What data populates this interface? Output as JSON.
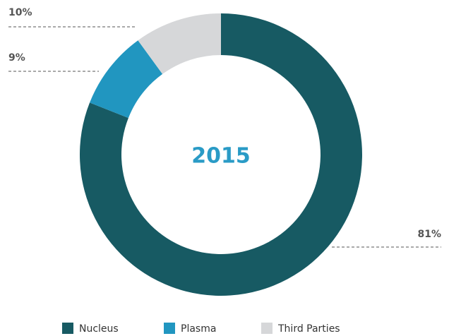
{
  "chart_data": {
    "type": "donut",
    "center_label": "2015",
    "categories": [
      "Nucleus",
      "Plasma",
      "Third Parties"
    ],
    "values": [
      81,
      9,
      10
    ],
    "value_labels": [
      "81%",
      "9%",
      "10%"
    ],
    "colors": [
      "#175a63",
      "#2196c0",
      "#d6d7d9"
    ],
    "legend": "bottom"
  }
}
